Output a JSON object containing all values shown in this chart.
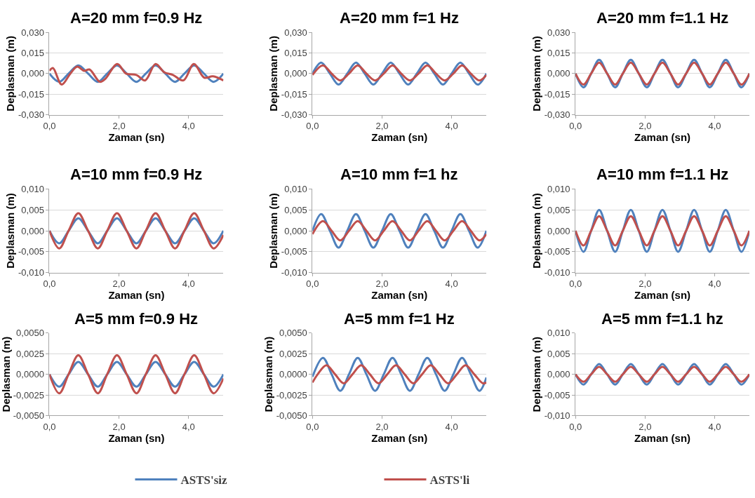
{
  "chart_data": [
    {
      "type": "line",
      "title": "A=20 mm f=0.9 Hz",
      "xlabel": "Zaman (sn)",
      "ylabel": "Deplasman (m)",
      "xlim": [
        0,
        5
      ],
      "xticks": [
        {
          "value": 0,
          "label": "0,0"
        },
        {
          "value": 2,
          "label": "2,0"
        },
        {
          "value": 4,
          "label": "4,0"
        }
      ],
      "ylim": [
        -0.03,
        0.03
      ],
      "yticks": [
        {
          "value": -0.03,
          "label": "-0,030"
        },
        {
          "value": -0.015,
          "label": "-0,015"
        },
        {
          "value": 0,
          "label": "0,000"
        },
        {
          "value": 0.015,
          "label": "0,015"
        },
        {
          "value": 0.03,
          "label": "0,030"
        }
      ],
      "grid": "y",
      "legend": "bottom",
      "series": [
        {
          "name": "ASTS'siz",
          "color": "#4f81bd",
          "x": [
            0,
            0.28,
            0.55,
            0.83,
            1.11,
            1.39,
            1.66,
            1.94,
            2.22,
            2.5,
            2.77,
            3.05,
            3.33,
            3.61,
            3.88,
            4.16,
            4.44,
            4.72,
            5.0
          ],
          "values": [
            0,
            -0.006,
            0,
            0.006,
            0,
            -0.006,
            0,
            0.006,
            0,
            -0.006,
            0,
            0.006,
            0,
            -0.006,
            0,
            0.006,
            0,
            -0.006,
            0
          ]
        },
        {
          "name": "ASTS'li",
          "color": "#c0504d",
          "x": [
            0,
            0.1,
            0.35,
            0.6,
            0.8,
            1.0,
            1.15,
            1.45,
            1.6,
            1.95,
            2.2,
            2.5,
            2.75,
            3.05,
            3.3,
            3.55,
            3.85,
            4.15,
            4.45,
            4.7,
            5.0
          ],
          "values": [
            0.002,
            0.004,
            -0.008,
            0,
            0.005,
            0.002,
            0.003,
            -0.006,
            -0.004,
            0.007,
            0,
            -0.001,
            -0.005,
            0.007,
            0.001,
            -0.001,
            -0.005,
            0.007,
            -0.003,
            -0.002,
            -0.005
          ]
        }
      ]
    },
    {
      "type": "line",
      "title": "A=20 mm f=1 Hz",
      "xlabel": "Zaman (sn)",
      "ylabel": "Deplasman (m)",
      "xlim": [
        0,
        5
      ],
      "xticks": [
        {
          "value": 0,
          "label": "0,0"
        },
        {
          "value": 2,
          "label": "2,0"
        },
        {
          "value": 4,
          "label": "4,0"
        }
      ],
      "ylim": [
        -0.03,
        0.03
      ],
      "yticks": [
        {
          "value": -0.03,
          "label": "-0,030"
        },
        {
          "value": -0.015,
          "label": "-0,015"
        },
        {
          "value": 0,
          "label": "0,000"
        },
        {
          "value": 0.015,
          "label": "0,015"
        },
        {
          "value": 0.03,
          "label": "0,030"
        }
      ],
      "grid": "y",
      "series": [
        {
          "name": "ASTS'siz",
          "color": "#4f81bd",
          "x": [
            0,
            0.25,
            0.5,
            0.75,
            1,
            1.25,
            1.5,
            1.75,
            2,
            2.25,
            2.5,
            2.75,
            3,
            3.25,
            3.5,
            3.75,
            4,
            4.25,
            4.5,
            4.75,
            5
          ],
          "values": [
            0,
            0.008,
            0,
            -0.008,
            0,
            0.008,
            0,
            -0.008,
            0,
            0.008,
            0,
            -0.008,
            0,
            0.008,
            0,
            -0.008,
            0,
            0.008,
            0,
            -0.008,
            0
          ]
        },
        {
          "name": "ASTS'li",
          "color": "#c0504d",
          "x": [
            0,
            0.3,
            0.55,
            0.8,
            1.05,
            1.3,
            1.55,
            1.8,
            2.05,
            2.3,
            2.55,
            2.8,
            3.05,
            3.3,
            3.55,
            3.8,
            4.05,
            4.3,
            4.55,
            4.8,
            5.0
          ],
          "values": [
            -0.001,
            0.006,
            0,
            -0.005,
            0,
            0.006,
            0,
            -0.005,
            0,
            0.006,
            0,
            -0.005,
            0,
            0.006,
            0,
            -0.005,
            0,
            0.006,
            0,
            -0.005,
            -0.001
          ]
        }
      ]
    },
    {
      "type": "line",
      "title": "A=20 mm f=1.1 Hz",
      "xlabel": "Zaman (sn)",
      "ylabel": "Deplasman (m)",
      "xlim": [
        0,
        5
      ],
      "xticks": [
        {
          "value": 0,
          "label": "0,0"
        },
        {
          "value": 2,
          "label": "2,0"
        },
        {
          "value": 4,
          "label": "4,0"
        }
      ],
      "ylim": [
        -0.03,
        0.03
      ],
      "yticks": [
        {
          "value": -0.03,
          "label": "-0,030"
        },
        {
          "value": -0.015,
          "label": "-0,015"
        },
        {
          "value": 0,
          "label": "0,000"
        },
        {
          "value": 0.015,
          "label": "0,015"
        },
        {
          "value": 0.03,
          "label": "0,030"
        }
      ],
      "grid": "y",
      "series": [
        {
          "name": "ASTS'siz",
          "color": "#4f81bd",
          "x": [
            0,
            0.23,
            0.45,
            0.68,
            0.91,
            1.14,
            1.36,
            1.59,
            1.82,
            2.05,
            2.27,
            2.5,
            2.73,
            2.95,
            3.18,
            3.41,
            3.64,
            3.86,
            4.09,
            4.32,
            4.55,
            4.77,
            5.0
          ],
          "values": [
            0,
            -0.01,
            0,
            0.01,
            0,
            -0.01,
            0,
            0.01,
            0,
            -0.01,
            0,
            0.01,
            0,
            -0.01,
            0,
            0.01,
            0,
            -0.01,
            0,
            0.01,
            0,
            -0.01,
            0
          ]
        },
        {
          "name": "ASTS'li",
          "color": "#c0504d",
          "x": [
            0,
            0.23,
            0.45,
            0.68,
            0.91,
            1.14,
            1.36,
            1.59,
            1.82,
            2.05,
            2.27,
            2.5,
            2.73,
            2.95,
            3.18,
            3.41,
            3.64,
            3.86,
            4.09,
            4.32,
            4.55,
            4.77,
            5.0
          ],
          "values": [
            0,
            -0.008,
            0,
            0.008,
            0,
            -0.008,
            0,
            0.008,
            0,
            -0.008,
            0,
            0.008,
            0,
            -0.008,
            0,
            0.008,
            0,
            -0.008,
            0,
            0.008,
            0,
            -0.008,
            0
          ]
        }
      ]
    },
    {
      "type": "line",
      "title": "A=10 mm f=0.9 Hz",
      "xlabel": "Zaman (sn)",
      "ylabel": "Deplasman (m)",
      "xlim": [
        0,
        5
      ],
      "xticks": [
        {
          "value": 0,
          "label": "0,0"
        },
        {
          "value": 2,
          "label": "2,0"
        },
        {
          "value": 4,
          "label": "4,0"
        }
      ],
      "ylim": [
        -0.01,
        0.01
      ],
      "yticks": [
        {
          "value": -0.01,
          "label": "-0,010"
        },
        {
          "value": -0.005,
          "label": "-0,005"
        },
        {
          "value": 0,
          "label": "0,000"
        },
        {
          "value": 0.005,
          "label": "0,005"
        },
        {
          "value": 0.01,
          "label": "0,010"
        }
      ],
      "grid": "y",
      "series": [
        {
          "name": "ASTS'siz",
          "color": "#4f81bd",
          "x": [
            0,
            0.28,
            0.55,
            0.83,
            1.11,
            1.39,
            1.66,
            1.94,
            2.22,
            2.5,
            2.77,
            3.05,
            3.33,
            3.61,
            3.88,
            4.16,
            4.44,
            4.72,
            5.0
          ],
          "values": [
            0,
            -0.003,
            0,
            0.003,
            0,
            -0.003,
            0,
            0.003,
            0,
            -0.003,
            0,
            0.003,
            0,
            -0.003,
            0,
            0.003,
            0,
            -0.003,
            0
          ]
        },
        {
          "name": "ASTS'li",
          "color": "#c0504d",
          "x": [
            0,
            0.28,
            0.55,
            0.83,
            1.11,
            1.39,
            1.66,
            1.94,
            2.22,
            2.5,
            2.77,
            3.05,
            3.33,
            3.61,
            3.88,
            4.16,
            4.44,
            4.72,
            5.0
          ],
          "values": [
            0,
            -0.0042,
            0,
            0.0042,
            0,
            -0.0042,
            0,
            0.0042,
            0,
            -0.0042,
            0,
            0.0042,
            0,
            -0.0042,
            0,
            0.0042,
            0,
            -0.0042,
            -0.001
          ]
        }
      ]
    },
    {
      "type": "line",
      "title": "A=10 mm f=1 hz",
      "xlabel": "Zaman (sn)",
      "ylabel": "Deplasman (m)",
      "xlim": [
        0,
        5
      ],
      "xticks": [
        {
          "value": 0,
          "label": "0,0"
        },
        {
          "value": 2,
          "label": "2,0"
        },
        {
          "value": 4,
          "label": "4,0"
        }
      ],
      "ylim": [
        -0.01,
        0.01
      ],
      "yticks": [
        {
          "value": -0.01,
          "label": "-0,010"
        },
        {
          "value": -0.005,
          "label": "-0,005"
        },
        {
          "value": 0,
          "label": "0,000"
        },
        {
          "value": 0.005,
          "label": "0,005"
        },
        {
          "value": 0.01,
          "label": "0,010"
        }
      ],
      "grid": "y",
      "series": [
        {
          "name": "ASTS'siz",
          "color": "#4f81bd",
          "x": [
            0,
            0.25,
            0.5,
            0.75,
            1,
            1.25,
            1.5,
            1.75,
            2,
            2.25,
            2.5,
            2.75,
            3,
            3.25,
            3.5,
            3.75,
            4,
            4.25,
            4.5,
            4.75,
            5
          ],
          "values": [
            0,
            0.004,
            0,
            -0.004,
            0,
            0.004,
            0,
            -0.004,
            0,
            0.004,
            0,
            -0.004,
            0,
            0.004,
            0,
            -0.004,
            0,
            0.004,
            0,
            -0.004,
            0
          ]
        },
        {
          "name": "ASTS'li",
          "color": "#c0504d",
          "x": [
            0,
            0.3,
            0.55,
            0.8,
            1.05,
            1.3,
            1.55,
            1.8,
            2.05,
            2.3,
            2.55,
            2.8,
            3.05,
            3.3,
            3.55,
            3.8,
            4.05,
            4.3,
            4.55,
            4.8,
            5.0
          ],
          "values": [
            -0.0008,
            0.0023,
            0,
            -0.0023,
            0,
            0.0023,
            0,
            -0.0023,
            0,
            0.0023,
            0,
            -0.0023,
            0,
            0.0023,
            0,
            -0.0023,
            0,
            0.0023,
            0,
            -0.0023,
            -0.0008
          ]
        }
      ]
    },
    {
      "type": "line",
      "title": "A=10 mm f=1.1 Hz",
      "xlabel": "Zaman (sn)",
      "ylabel": "Deplasman (m)",
      "xlim": [
        0,
        5
      ],
      "xticks": [
        {
          "value": 0,
          "label": "0,0"
        },
        {
          "value": 2,
          "label": "2,0"
        },
        {
          "value": 4,
          "label": "4,0"
        }
      ],
      "ylim": [
        -0.01,
        0.01
      ],
      "yticks": [
        {
          "value": -0.01,
          "label": "-0,010"
        },
        {
          "value": -0.005,
          "label": "-0,005"
        },
        {
          "value": 0,
          "label": "0,000"
        },
        {
          "value": 0.005,
          "label": "0,005"
        },
        {
          "value": 0.01,
          "label": "0,010"
        }
      ],
      "grid": "y",
      "series": [
        {
          "name": "ASTS'siz",
          "color": "#4f81bd",
          "x": [
            0,
            0.23,
            0.45,
            0.68,
            0.91,
            1.14,
            1.36,
            1.59,
            1.82,
            2.05,
            2.27,
            2.5,
            2.73,
            2.95,
            3.18,
            3.41,
            3.64,
            3.86,
            4.09,
            4.32,
            4.55,
            4.77,
            5.0
          ],
          "values": [
            0,
            -0.005,
            0,
            0.005,
            0,
            -0.005,
            0,
            0.005,
            0,
            -0.005,
            0,
            0.005,
            0,
            -0.005,
            0,
            0.005,
            0,
            -0.005,
            0,
            0.005,
            0,
            -0.005,
            0
          ]
        },
        {
          "name": "ASTS'li",
          "color": "#c0504d",
          "x": [
            0,
            0.23,
            0.45,
            0.68,
            0.91,
            1.14,
            1.36,
            1.59,
            1.82,
            2.05,
            2.27,
            2.5,
            2.73,
            2.95,
            3.18,
            3.41,
            3.64,
            3.86,
            4.09,
            4.32,
            4.55,
            4.77,
            5.0
          ],
          "values": [
            0,
            -0.0035,
            0,
            0.0035,
            0,
            -0.0035,
            0,
            0.0035,
            0,
            -0.0035,
            0,
            0.0035,
            0,
            -0.0035,
            0,
            0.0035,
            0,
            -0.0035,
            0,
            0.0035,
            0,
            -0.0035,
            0
          ]
        }
      ]
    },
    {
      "type": "line",
      "title": "A=5 mm f=0.9 Hz",
      "xlabel": "Zaman (sn)",
      "ylabel": "Deplasman (m)",
      "xlim": [
        0,
        5
      ],
      "xticks": [
        {
          "value": 0,
          "label": "0,0"
        },
        {
          "value": 2,
          "label": "2,0"
        },
        {
          "value": 4,
          "label": "4,0"
        }
      ],
      "ylim": [
        -0.005,
        0.005
      ],
      "yticks": [
        {
          "value": -0.005,
          "label": "-0,0050"
        },
        {
          "value": -0.0025,
          "label": "-0,0025"
        },
        {
          "value": 0,
          "label": "0,0000"
        },
        {
          "value": 0.0025,
          "label": "0,0025"
        },
        {
          "value": 0.005,
          "label": "0,0050"
        }
      ],
      "grid": "y",
      "series": [
        {
          "name": "ASTS'siz",
          "color": "#4f81bd",
          "x": [
            0,
            0.28,
            0.55,
            0.83,
            1.11,
            1.39,
            1.66,
            1.94,
            2.22,
            2.5,
            2.77,
            3.05,
            3.33,
            3.61,
            3.88,
            4.16,
            4.44,
            4.72,
            5.0
          ],
          "values": [
            0,
            -0.0015,
            0,
            0.0015,
            0,
            -0.0015,
            0,
            0.0015,
            0,
            -0.0015,
            0,
            0.0015,
            0,
            -0.0015,
            0,
            0.0015,
            0,
            -0.0015,
            0
          ]
        },
        {
          "name": "ASTS'li",
          "color": "#c0504d",
          "x": [
            0,
            0.28,
            0.55,
            0.83,
            1.11,
            1.39,
            1.66,
            1.94,
            2.22,
            2.5,
            2.77,
            3.05,
            3.33,
            3.61,
            3.88,
            4.16,
            4.44,
            4.72,
            5.0
          ],
          "values": [
            0,
            -0.0023,
            0,
            0.0023,
            0,
            -0.0023,
            0,
            0.0023,
            0,
            -0.0023,
            0,
            0.0023,
            0,
            -0.0023,
            0,
            0.0023,
            0,
            -0.0023,
            -0.0005
          ]
        }
      ]
    },
    {
      "type": "line",
      "title": "A=5 mm f=1 Hz",
      "xlabel": "Zaman (sn)",
      "ylabel": "Deplasman (m)",
      "xlim": [
        0,
        5
      ],
      "xticks": [
        {
          "value": 0,
          "label": "0,0"
        },
        {
          "value": 2,
          "label": "2,0"
        },
        {
          "value": 4,
          "label": "4,0"
        }
      ],
      "ylim": [
        -0.005,
        0.005
      ],
      "yticks": [
        {
          "value": -0.005,
          "label": "-0,0050"
        },
        {
          "value": -0.0025,
          "label": "-0,0025"
        },
        {
          "value": 0,
          "label": "0,0000"
        },
        {
          "value": 0.0025,
          "label": "0,0025"
        },
        {
          "value": 0.005,
          "label": "0,0050"
        }
      ],
      "grid": "y",
      "series": [
        {
          "name": "ASTS'siz",
          "color": "#4f81bd",
          "x": [
            0,
            0.3,
            0.55,
            0.8,
            1.05,
            1.3,
            1.55,
            1.8,
            2.05,
            2.3,
            2.55,
            2.8,
            3.05,
            3.3,
            3.55,
            3.8,
            4.05,
            4.3,
            4.55,
            4.8,
            5.0
          ],
          "values": [
            -0.0003,
            0.002,
            0,
            -0.002,
            0,
            0.002,
            0,
            -0.002,
            0,
            0.002,
            0,
            -0.002,
            0,
            0.002,
            0,
            -0.002,
            0,
            0.002,
            0,
            -0.002,
            -0.0004
          ]
        },
        {
          "name": "ASTS'li",
          "color": "#c0504d",
          "x": [
            0,
            0.15,
            0.4,
            0.65,
            0.9,
            1.15,
            1.4,
            1.65,
            1.9,
            2.15,
            2.4,
            2.65,
            2.9,
            3.15,
            3.4,
            3.65,
            3.9,
            4.15,
            4.4,
            4.65,
            4.9,
            5.0
          ],
          "values": [
            -0.001,
            0,
            0.0011,
            0,
            -0.0011,
            0,
            0.0011,
            0,
            -0.0011,
            0,
            0.0011,
            0,
            -0.0011,
            0,
            0.0011,
            0,
            -0.0011,
            0,
            0.0011,
            0,
            -0.0011,
            -0.001
          ]
        }
      ]
    },
    {
      "type": "line",
      "title": "A=5 mm f=1.1 hz",
      "xlabel": "Zaman (sn)",
      "ylabel": "Deplasman (m)",
      "xlim": [
        0,
        5
      ],
      "xticks": [
        {
          "value": 0,
          "label": "0,0"
        },
        {
          "value": 2,
          "label": "2,0"
        },
        {
          "value": 4,
          "label": "4,0"
        }
      ],
      "ylim": [
        -0.01,
        0.01
      ],
      "yticks": [
        {
          "value": -0.01,
          "label": "-0,010"
        },
        {
          "value": -0.005,
          "label": "-0,005"
        },
        {
          "value": 0,
          "label": "0,000"
        },
        {
          "value": 0.005,
          "label": "0,005"
        },
        {
          "value": 0.01,
          "label": "0,010"
        }
      ],
      "grid": "y",
      "series": [
        {
          "name": "ASTS'siz",
          "color": "#4f81bd",
          "x": [
            0,
            0.23,
            0.45,
            0.68,
            0.91,
            1.14,
            1.36,
            1.59,
            1.82,
            2.05,
            2.27,
            2.5,
            2.73,
            2.95,
            3.18,
            3.41,
            3.64,
            3.86,
            4.09,
            4.32,
            4.55,
            4.77,
            5.0
          ],
          "values": [
            0,
            -0.0025,
            0,
            0.0025,
            0,
            -0.0025,
            0,
            0.0025,
            0,
            -0.0025,
            0,
            0.0025,
            0,
            -0.0025,
            0,
            0.0025,
            0,
            -0.0025,
            0,
            0.0025,
            0,
            -0.0025,
            0
          ]
        },
        {
          "name": "ASTS'li",
          "color": "#c0504d",
          "x": [
            0,
            0.23,
            0.45,
            0.68,
            0.91,
            1.14,
            1.36,
            1.59,
            1.82,
            2.05,
            2.27,
            2.5,
            2.73,
            2.95,
            3.18,
            3.41,
            3.64,
            3.86,
            4.09,
            4.32,
            4.55,
            4.77,
            5.0
          ],
          "values": [
            0,
            -0.0018,
            0,
            0.0018,
            0,
            -0.0018,
            0,
            0.0018,
            0,
            -0.0018,
            0,
            0.0018,
            0,
            -0.0018,
            0,
            0.0018,
            0,
            -0.0018,
            0,
            0.0018,
            0,
            -0.0018,
            0
          ]
        }
      ]
    }
  ]
}
